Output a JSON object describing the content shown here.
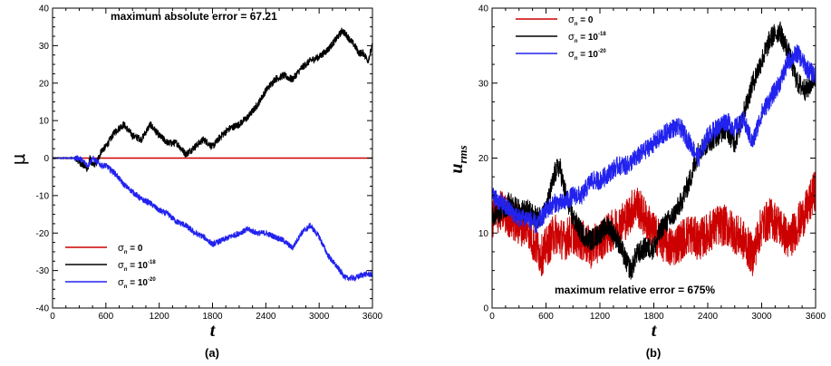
{
  "chart_data": [
    {
      "type": "line",
      "caption": "(a)",
      "ylabel": "μ",
      "xlabel": "t",
      "annotation": "maximum absolute error = 67.21",
      "xlim": [
        0,
        3600
      ],
      "ylim": [
        -40,
        40
      ],
      "xticks": [
        0,
        600,
        1200,
        1800,
        2400,
        3000,
        3600
      ],
      "yticks": [
        -40,
        -30,
        -20,
        -10,
        0,
        10,
        20,
        30,
        40
      ],
      "legend_position": "bottom-left",
      "series": [
        {
          "name": "σn = 0",
          "sym": "σ",
          "sub": "n",
          "eq": " = 0",
          "sup": "",
          "color": "#cc0000",
          "x": [
            0,
            3600
          ],
          "y": [
            0,
            0
          ],
          "noise": 0
        },
        {
          "name": "σn = 10-18",
          "sym": "σ",
          "sub": "n",
          "eq": " = 10",
          "sup": "-18",
          "color": "#000000",
          "x": [
            0,
            250,
            300,
            350,
            400,
            420,
            450,
            500,
            550,
            600,
            700,
            800,
            900,
            1000,
            1100,
            1200,
            1300,
            1400,
            1500,
            1550,
            1600,
            1700,
            1800,
            1900,
            2000,
            2100,
            2200,
            2300,
            2400,
            2500,
            2600,
            2700,
            2800,
            2900,
            3000,
            3100,
            3200,
            3260,
            3300,
            3400,
            3450,
            3500,
            3550,
            3600
          ],
          "y": [
            0,
            0,
            -1,
            -2,
            -3,
            0,
            -2,
            -1,
            2,
            3,
            7,
            9,
            6,
            5,
            9,
            6,
            4,
            4,
            1,
            2,
            3,
            5,
            3,
            6,
            8,
            9,
            11,
            14,
            18,
            21,
            22,
            21,
            24,
            26,
            27,
            29,
            32,
            34,
            33,
            30,
            28,
            28,
            26,
            30
          ],
          "noise": 1.0
        },
        {
          "name": "σn = 10-20",
          "sym": "σ",
          "sub": "n",
          "eq": " = 10",
          "sup": "-20",
          "color": "#2222ee",
          "x": [
            0,
            250,
            300,
            350,
            400,
            450,
            500,
            550,
            600,
            700,
            800,
            900,
            1000,
            1100,
            1200,
            1300,
            1400,
            1500,
            1600,
            1700,
            1800,
            1900,
            2000,
            2100,
            2200,
            2300,
            2400,
            2500,
            2600,
            2700,
            2800,
            2900,
            3000,
            3100,
            3200,
            3300,
            3400,
            3500,
            3600
          ],
          "y": [
            0,
            0,
            0,
            -1,
            -2,
            0,
            -1,
            -2,
            -2,
            -4,
            -7,
            -9,
            -11,
            -12,
            -14,
            -15,
            -17,
            -18,
            -20,
            -21,
            -23,
            -22,
            -21,
            -20,
            -19,
            -20,
            -20,
            -21,
            -22,
            -24,
            -20,
            -18,
            -21,
            -26,
            -29,
            -32,
            -32,
            -31,
            -31
          ],
          "noise": 0.8
        }
      ]
    },
    {
      "type": "line",
      "caption": "(b)",
      "ylabel": "u",
      "ylabel_sub": "rms",
      "xlabel": "t",
      "annotation": "maximum relative error = 675%",
      "xlim": [
        0,
        3600
      ],
      "ylim": [
        0,
        40
      ],
      "xticks": [
        0,
        600,
        1200,
        1800,
        2400,
        3000,
        3600
      ],
      "yticks": [
        0,
        10,
        20,
        30,
        40
      ],
      "legend_position": "top-left",
      "series": [
        {
          "name": "σn = 0",
          "sym": "σ",
          "sub": "n",
          "eq": " = 0",
          "sup": "",
          "color": "#cc0000",
          "x": [
            0,
            100,
            200,
            300,
            400,
            450,
            500,
            550,
            600,
            700,
            800,
            900,
            1000,
            1100,
            1200,
            1300,
            1400,
            1500,
            1600,
            1700,
            1800,
            1900,
            2000,
            2100,
            2200,
            2300,
            2400,
            2500,
            2600,
            2700,
            2800,
            2900,
            3000,
            3100,
            3200,
            3300,
            3400,
            3500,
            3600
          ],
          "y": [
            12,
            13,
            12,
            11,
            11,
            9,
            8,
            7,
            8,
            10,
            9,
            10,
            9,
            8,
            9,
            10,
            11,
            12,
            14,
            12,
            10,
            9,
            8,
            9,
            10,
            9,
            10,
            11,
            11,
            10,
            9,
            7,
            11,
            12,
            11,
            9,
            11,
            13,
            16
          ],
          "noise": 2.8
        },
        {
          "name": "σn = 10-18",
          "sym": "σ",
          "sub": "n",
          "eq": " = 10",
          "sup": "-18",
          "color": "#000000",
          "x": [
            0,
            100,
            200,
            300,
            400,
            500,
            600,
            700,
            750,
            800,
            900,
            1000,
            1100,
            1200,
            1300,
            1400,
            1500,
            1550,
            1600,
            1700,
            1800,
            1900,
            2000,
            2100,
            2200,
            2300,
            2400,
            2500,
            2600,
            2700,
            2800,
            2900,
            3000,
            3100,
            3200,
            3300,
            3400,
            3500,
            3600
          ],
          "y": [
            12,
            13,
            14,
            13,
            13,
            12,
            13,
            18,
            19,
            16,
            12,
            10,
            9,
            10,
            11,
            9,
            6,
            5,
            7,
            8,
            8,
            11,
            12,
            14,
            17,
            21,
            22,
            23,
            24,
            22,
            26,
            30,
            33,
            36,
            37,
            34,
            30,
            29,
            31
          ],
          "noise": 1.5
        },
        {
          "name": "σn = 10-20",
          "sym": "σ",
          "sub": "n",
          "eq": " = 10",
          "sup": "-20",
          "color": "#2222ee",
          "x": [
            0,
            100,
            200,
            300,
            400,
            500,
            600,
            700,
            800,
            900,
            1000,
            1100,
            1200,
            1300,
            1400,
            1500,
            1600,
            1700,
            1800,
            1900,
            2000,
            2100,
            2200,
            2300,
            2400,
            2500,
            2600,
            2700,
            2800,
            2900,
            3000,
            3100,
            3200,
            3300,
            3400,
            3500,
            3600
          ],
          "y": [
            15,
            14,
            13,
            12,
            12,
            11,
            13,
            14,
            14,
            15,
            15,
            17,
            17,
            18,
            19,
            19,
            20,
            21,
            22,
            23,
            24,
            24,
            22,
            20,
            23,
            24,
            25,
            24,
            25,
            22,
            26,
            28,
            30,
            33,
            34,
            32,
            31
          ],
          "noise": 1.3
        }
      ]
    }
  ]
}
